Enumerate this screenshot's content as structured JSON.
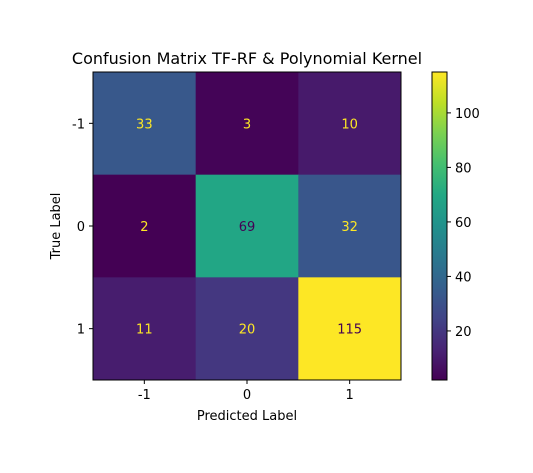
{
  "chart_data": {
    "type": "heatmap",
    "title": "Confusion Matrix TF-RF & Polynomial Kernel",
    "xlabel": "Predicted Label",
    "ylabel": "True Label",
    "x_categories": [
      "-1",
      "0",
      "1"
    ],
    "y_categories": [
      "-1",
      "0",
      "1"
    ],
    "values": [
      [
        33,
        3,
        10
      ],
      [
        2,
        69,
        32
      ],
      [
        11,
        20,
        115
      ]
    ],
    "colormap": "viridis",
    "colorbar": {
      "range": [
        2,
        115
      ],
      "ticks": [
        20,
        40,
        60,
        80,
        100
      ]
    },
    "text_colors": {
      "on_dark": "#fde725",
      "on_light": "#440154"
    },
    "grid": false
  }
}
